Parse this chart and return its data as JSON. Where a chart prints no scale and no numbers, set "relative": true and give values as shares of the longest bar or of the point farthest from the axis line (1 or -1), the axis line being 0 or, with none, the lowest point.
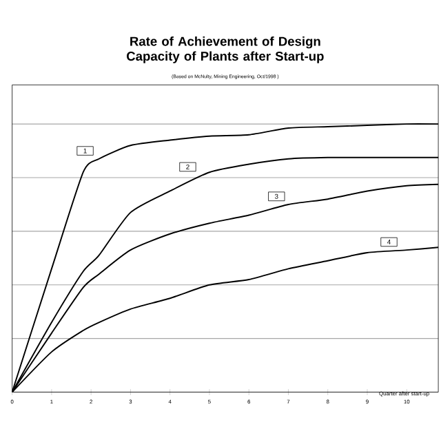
{
  "chart_data": {
    "type": "line",
    "title": "Rate of Achievement of Design Capacity of Plants after Start-up",
    "subtitle": "(Based on McNulty, Mining Engineering, Oct/1998 )",
    "xlabel": "Quarter after start-up",
    "relative": true,
    "xlim": [
      0,
      10.8
    ],
    "xticks": [
      0,
      1,
      2,
      3,
      4,
      5,
      6,
      7,
      8,
      9,
      10
    ],
    "grid": "y",
    "marker": "none",
    "line_style": "solid",
    "x": [
      0,
      1,
      1.8,
      2.2,
      3,
      4,
      5,
      6,
      7,
      8,
      9,
      10,
      10.8
    ],
    "series": [
      {
        "color": "#000000",
        "values": [
          0,
          0.46,
          0.82,
          0.87,
          0.92,
          0.94,
          0.955,
          0.96,
          0.985,
          0.99,
          0.995,
          1.0,
          1.0
        ]
      },
      {
        "color": "#000000",
        "values": [
          0,
          0.26,
          0.45,
          0.51,
          0.67,
          0.75,
          0.82,
          0.85,
          0.87,
          0.875,
          0.875,
          0.875,
          0.875
        ]
      },
      {
        "color": "#000000",
        "values": [
          0,
          0.22,
          0.39,
          0.44,
          0.53,
          0.59,
          0.63,
          0.66,
          0.7,
          0.72,
          0.75,
          0.77,
          0.775
        ]
      },
      {
        "color": "#000000",
        "values": [
          0,
          0.15,
          0.23,
          0.26,
          0.31,
          0.35,
          0.4,
          0.42,
          0.46,
          0.49,
          0.52,
          0.53,
          0.54
        ]
      }
    ],
    "annotations": [
      {
        "text": "1",
        "x": 1.85,
        "y": 0.9
      },
      {
        "text": "2",
        "x": 4.45,
        "y": 0.84
      },
      {
        "text": "3",
        "x": 6.7,
        "y": 0.73
      },
      {
        "text": "4",
        "x": 9.55,
        "y": 0.56
      }
    ]
  }
}
